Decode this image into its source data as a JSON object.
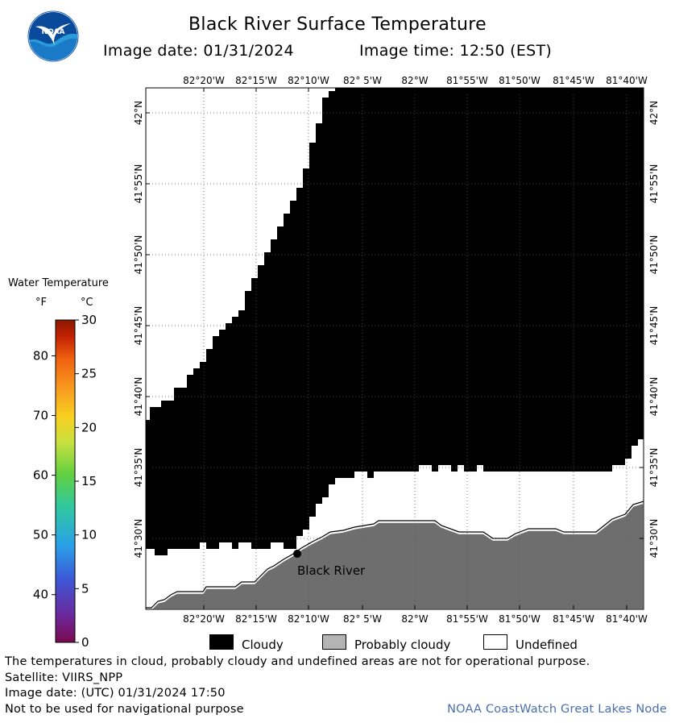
{
  "header": {
    "title": "Black River Surface Temperature",
    "image_date": "Image date: 01/31/2024",
    "image_time": "Image time: 12:50 (EST)"
  },
  "logo": {
    "icon": "noaa-logo-icon",
    "text": "NOAA"
  },
  "map": {
    "lon_labels": [
      "82°20'W",
      "82°15'W",
      "82°10'W",
      "82° 5'W",
      "82°W",
      "81°55'W",
      "81°50'W",
      "81°45'W",
      "81°40'W"
    ],
    "lat_labels": [
      "42°N",
      "41°55'N",
      "41°50'N",
      "41°45'N",
      "41°40'N",
      "41°35'N",
      "41°30'N"
    ],
    "station": {
      "name": "Black River"
    }
  },
  "colorbar": {
    "title": "Water Temperature",
    "unit_f": "°F",
    "unit_c": "°C",
    "f_ticks": [
      "80",
      "70",
      "60",
      "50",
      "40"
    ],
    "c_ticks": [
      "30",
      "25",
      "20",
      "15",
      "10",
      "5",
      "0"
    ],
    "colors": [
      "#7a0a4f",
      "#6a2aa0",
      "#3a5ad8",
      "#2aa0e8",
      "#30c8a0",
      "#60d040",
      "#c8e040",
      "#f8d020",
      "#f8a020",
      "#f06010",
      "#c02000",
      "#8a1a00"
    ]
  },
  "legend": {
    "cloudy": "Cloudy",
    "probably_cloudy": "Probably cloudy",
    "undefined": "Undefined",
    "cloudy_color": "#000000",
    "probably_cloudy_color": "#b4b4b4",
    "land_color": "#6e6e6e"
  },
  "footer": {
    "disclaimer": "The temperatures in cloud, probably cloudy and undefined areas are not for operational purpose.",
    "satellite": "Satellite: VIIRS_NPP",
    "utc_date": "Image date: (UTC) 01/31/2024  17:50",
    "nav_warning": "Not to be used for navigational purpose",
    "credit": "NOAA CoastWatch Great Lakes Node"
  }
}
